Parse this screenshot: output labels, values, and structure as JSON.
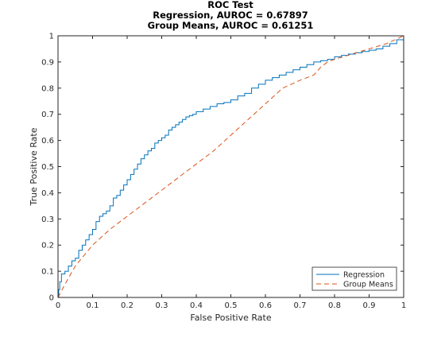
{
  "chart_data": {
    "type": "line",
    "title_lines": [
      "ROC Test",
      "Regression, AUROC = 0.67897",
      "Group Means, AUROC = 0.61251"
    ],
    "xlabel": "False Positive Rate",
    "ylabel": "True Positive Rate",
    "xlim": [
      0,
      1
    ],
    "ylim": [
      0,
      1
    ],
    "x_ticks": [
      "0",
      "0.1",
      "0.2",
      "0.3",
      "0.4",
      "0.5",
      "0.6",
      "0.7",
      "0.8",
      "0.9",
      "1"
    ],
    "y_ticks": [
      "0",
      "0.1",
      "0.2",
      "0.3",
      "0.4",
      "0.5",
      "0.6",
      "0.7",
      "0.8",
      "0.9",
      "1"
    ],
    "grid": false,
    "legend_position": "bottom-right",
    "series": [
      {
        "name": "Regression",
        "color": "#0072bd",
        "style": "solid",
        "x": [
          0,
          0.002,
          0.005,
          0.01,
          0.02,
          0.03,
          0.04,
          0.05,
          0.06,
          0.07,
          0.08,
          0.09,
          0.1,
          0.11,
          0.12,
          0.13,
          0.14,
          0.15,
          0.16,
          0.17,
          0.18,
          0.19,
          0.2,
          0.21,
          0.22,
          0.23,
          0.24,
          0.25,
          0.26,
          0.27,
          0.28,
          0.29,
          0.3,
          0.31,
          0.32,
          0.33,
          0.34,
          0.35,
          0.36,
          0.37,
          0.38,
          0.39,
          0.4,
          0.42,
          0.44,
          0.46,
          0.48,
          0.5,
          0.52,
          0.54,
          0.56,
          0.58,
          0.6,
          0.62,
          0.64,
          0.66,
          0.68,
          0.7,
          0.72,
          0.74,
          0.76,
          0.78,
          0.8,
          0.82,
          0.84,
          0.86,
          0.88,
          0.9,
          0.92,
          0.94,
          0.96,
          0.98,
          1.0
        ],
        "y": [
          0,
          0.03,
          0.06,
          0.09,
          0.1,
          0.12,
          0.14,
          0.15,
          0.18,
          0.2,
          0.22,
          0.24,
          0.26,
          0.29,
          0.31,
          0.32,
          0.33,
          0.35,
          0.38,
          0.39,
          0.41,
          0.43,
          0.45,
          0.47,
          0.49,
          0.51,
          0.53,
          0.545,
          0.56,
          0.57,
          0.59,
          0.6,
          0.61,
          0.62,
          0.64,
          0.65,
          0.66,
          0.67,
          0.68,
          0.69,
          0.695,
          0.7,
          0.71,
          0.72,
          0.73,
          0.74,
          0.745,
          0.755,
          0.77,
          0.78,
          0.8,
          0.815,
          0.83,
          0.84,
          0.85,
          0.86,
          0.87,
          0.88,
          0.89,
          0.9,
          0.905,
          0.91,
          0.92,
          0.925,
          0.93,
          0.935,
          0.94,
          0.945,
          0.95,
          0.96,
          0.97,
          0.985,
          1.0
        ]
      },
      {
        "name": "Group Means",
        "color": "#d95319",
        "style": "dashed",
        "x": [
          0,
          0.02,
          0.05,
          0.1,
          0.15,
          0.2,
          0.25,
          0.3,
          0.35,
          0.4,
          0.45,
          0.5,
          0.55,
          0.6,
          0.65,
          0.7,
          0.74,
          0.76,
          0.78,
          0.8,
          0.85,
          0.9,
          0.95,
          1.0
        ],
        "y": [
          0,
          0.05,
          0.12,
          0.2,
          0.26,
          0.31,
          0.36,
          0.41,
          0.46,
          0.51,
          0.56,
          0.62,
          0.68,
          0.74,
          0.8,
          0.83,
          0.85,
          0.88,
          0.9,
          0.91,
          0.93,
          0.95,
          0.97,
          1.0
        ]
      }
    ]
  }
}
